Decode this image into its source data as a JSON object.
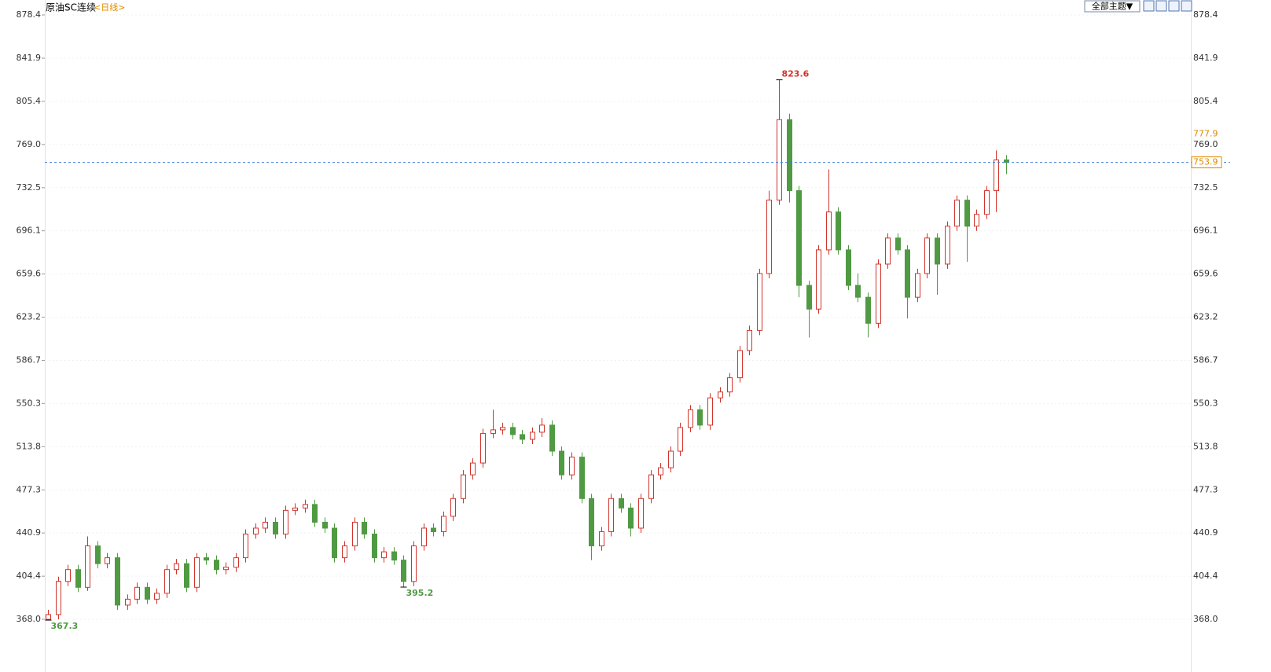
{
  "chart_data": {
    "type": "candlestick",
    "title": "原油SC连续",
    "period": "<日线>",
    "theme_button": "全部主题▼",
    "up_color": "#d0342c",
    "down_color": "#4f9a42",
    "last_line_color": "#3a7fd5",
    "label_color": "#e08a00",
    "ylim": [
      340.1,
      878.4
    ],
    "yticks": [
      {
        "value": 368.0,
        "label": "368.0"
      },
      404.4,
      440.9,
      477.3,
      513.8,
      550.3,
      586.7,
      623.2,
      659.6,
      696.1,
      732.5,
      {
        "value": 769.0,
        "label": "769.0"
      },
      805.4,
      841.9,
      878.4
    ],
    "limit_price": 777.9,
    "ohlc": [
      [
        368,
        376,
        367.3,
        372
      ],
      [
        372,
        404,
        368,
        400
      ],
      [
        400,
        414,
        396,
        410
      ],
      [
        410,
        414,
        391,
        395
      ],
      [
        395,
        438,
        392,
        430
      ],
      [
        430,
        434,
        411,
        415
      ],
      [
        415,
        424,
        411,
        420
      ],
      [
        420,
        424,
        376,
        380
      ],
      [
        380,
        389,
        376,
        385
      ],
      [
        385,
        399,
        381,
        395
      ],
      [
        395,
        399,
        381,
        385
      ],
      [
        385,
        394,
        381,
        390
      ],
      [
        390,
        414,
        386,
        410
      ],
      [
        410,
        419,
        406,
        415
      ],
      [
        415,
        419,
        391,
        395
      ],
      [
        395,
        424,
        391,
        420
      ],
      [
        420,
        424,
        414,
        418
      ],
      [
        418,
        422,
        406,
        410
      ],
      [
        410,
        416,
        406,
        412
      ],
      [
        412,
        424,
        408,
        420
      ],
      [
        420,
        444,
        416,
        440
      ],
      [
        440,
        449,
        436,
        445
      ],
      [
        445,
        454,
        441,
        450
      ],
      [
        450,
        454,
        436,
        440
      ],
      [
        440,
        464,
        436,
        460
      ],
      [
        460,
        466,
        456,
        462
      ],
      [
        462,
        469,
        458,
        465
      ],
      [
        465,
        469,
        446,
        450
      ],
      [
        450,
        454,
        441,
        445
      ],
      [
        445,
        449,
        416,
        420
      ],
      [
        420,
        434,
        416,
        430
      ],
      [
        430,
        454,
        426,
        450
      ],
      [
        450,
        454,
        436,
        440
      ],
      [
        440,
        444,
        416,
        420
      ],
      [
        420,
        429,
        416,
        425
      ],
      [
        425,
        429,
        414,
        418
      ],
      [
        418,
        422,
        395.2,
        400
      ],
      [
        400,
        434,
        396,
        430
      ],
      [
        430,
        449,
        426,
        445
      ],
      [
        445,
        449,
        438,
        442
      ],
      [
        442,
        459,
        438,
        455
      ],
      [
        455,
        474,
        451,
        470
      ],
      [
        470,
        494,
        466,
        490
      ],
      [
        490,
        504,
        486,
        500
      ],
      [
        500,
        529,
        496,
        525
      ],
      [
        525,
        545,
        521,
        528
      ],
      [
        528,
        534,
        524,
        530
      ],
      [
        530,
        534,
        520,
        524
      ],
      [
        524,
        528,
        516,
        520
      ],
      [
        520,
        530,
        516,
        526
      ],
      [
        526,
        538,
        522,
        532
      ],
      [
        532,
        536,
        506,
        510
      ],
      [
        510,
        514,
        486,
        490
      ],
      [
        490,
        509,
        486,
        505
      ],
      [
        505,
        509,
        466,
        470
      ],
      [
        470,
        474,
        418,
        430
      ],
      [
        430,
        446,
        426,
        442
      ],
      [
        442,
        474,
        438,
        470
      ],
      [
        470,
        474,
        458,
        462
      ],
      [
        462,
        466,
        438,
        445
      ],
      [
        445,
        474,
        441,
        470
      ],
      [
        470,
        494,
        466,
        490
      ],
      [
        490,
        500,
        486,
        496
      ],
      [
        496,
        514,
        492,
        510
      ],
      [
        510,
        534,
        506,
        530
      ],
      [
        530,
        549,
        526,
        545
      ],
      [
        545,
        549,
        528,
        532
      ],
      [
        532,
        559,
        528,
        555
      ],
      [
        555,
        564,
        551,
        560
      ],
      [
        560,
        576,
        556,
        572
      ],
      [
        572,
        599,
        568,
        595
      ],
      [
        595,
        616,
        591,
        612
      ],
      [
        612,
        664,
        608,
        660
      ],
      [
        660,
        730,
        656,
        722
      ],
      [
        722,
        823.6,
        718,
        790
      ],
      [
        790,
        795,
        720,
        730
      ],
      [
        730,
        734,
        640,
        650
      ],
      [
        650,
        654,
        606,
        630
      ],
      [
        630,
        684,
        626,
        680
      ],
      [
        680,
        748,
        676,
        712
      ],
      [
        712,
        716,
        676,
        680
      ],
      [
        680,
        684,
        646,
        650
      ],
      [
        650,
        660,
        636,
        640
      ],
      [
        640,
        644,
        606,
        618
      ],
      [
        618,
        672,
        614,
        668
      ],
      [
        668,
        694,
        664,
        690
      ],
      [
        690,
        694,
        676,
        680
      ],
      [
        680,
        684,
        622,
        640
      ],
      [
        640,
        664,
        636,
        660
      ],
      [
        660,
        694,
        656,
        690
      ],
      [
        690,
        694,
        642,
        668
      ],
      [
        668,
        704,
        664,
        700
      ],
      [
        700,
        726,
        696,
        722
      ],
      [
        722,
        726,
        670,
        700
      ],
      [
        700,
        714,
        696,
        710
      ],
      [
        710,
        734,
        706,
        730
      ],
      [
        730,
        764,
        712,
        756
      ],
      [
        756,
        760,
        744,
        753.9
      ]
    ]
  }
}
